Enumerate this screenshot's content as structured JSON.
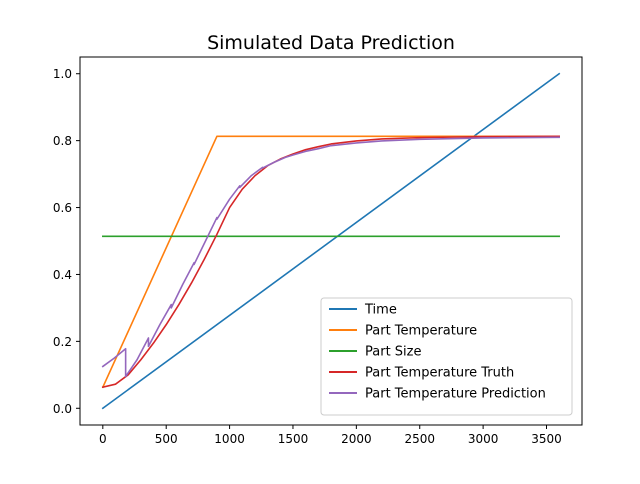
{
  "chart_data": {
    "type": "line",
    "title": "Simulated Data Prediction",
    "xlabel": "",
    "ylabel": "",
    "xlim": [
      -180,
      3780
    ],
    "ylim": [
      -0.05,
      1.05
    ],
    "x_ticks": [
      0,
      500,
      1000,
      1500,
      2000,
      2500,
      3000,
      3500
    ],
    "x_tick_labels": [
      "0",
      "500",
      "1000",
      "1500",
      "2000",
      "2500",
      "3000",
      "3500"
    ],
    "y_ticks": [
      0.0,
      0.2,
      0.4,
      0.6,
      0.8,
      1.0
    ],
    "y_tick_labels": [
      "0.0",
      "0.2",
      "0.4",
      "0.6",
      "0.8",
      "1.0"
    ],
    "grid": false,
    "legend_position": "lower-right",
    "series": [
      {
        "name": "Time",
        "color": "#1f77b4",
        "points": [
          [
            0,
            0.0
          ],
          [
            3600,
            1.0
          ]
        ]
      },
      {
        "name": "Part Temperature",
        "color": "#ff7f0e",
        "points": [
          [
            0,
            0.063
          ],
          [
            900,
            0.813
          ],
          [
            3600,
            0.813
          ]
        ]
      },
      {
        "name": "Part Size",
        "color": "#2ca02c",
        "points": [
          [
            0,
            0.514
          ],
          [
            3600,
            0.514
          ]
        ]
      },
      {
        "name": "Part Temperature Truth",
        "color": "#d62728",
        "points": [
          [
            0,
            0.063
          ],
          [
            100,
            0.072
          ],
          [
            200,
            0.1
          ],
          [
            300,
            0.145
          ],
          [
            400,
            0.195
          ],
          [
            500,
            0.25
          ],
          [
            600,
            0.31
          ],
          [
            700,
            0.375
          ],
          [
            800,
            0.445
          ],
          [
            900,
            0.52
          ],
          [
            1000,
            0.6
          ],
          [
            1100,
            0.655
          ],
          [
            1200,
            0.695
          ],
          [
            1300,
            0.725
          ],
          [
            1400,
            0.745
          ],
          [
            1500,
            0.76
          ],
          [
            1600,
            0.773
          ],
          [
            1700,
            0.782
          ],
          [
            1800,
            0.79
          ],
          [
            2000,
            0.799
          ],
          [
            2200,
            0.805
          ],
          [
            2500,
            0.809
          ],
          [
            3000,
            0.812
          ],
          [
            3600,
            0.813
          ]
        ]
      },
      {
        "name": "Part Temperature Prediction",
        "color": "#9467bd",
        "points": [
          [
            0,
            0.125
          ],
          [
            90,
            0.15
          ],
          [
            180,
            0.178
          ],
          [
            180,
            0.095
          ],
          [
            270,
            0.145
          ],
          [
            360,
            0.21
          ],
          [
            360,
            0.185
          ],
          [
            450,
            0.25
          ],
          [
            540,
            0.31
          ],
          [
            540,
            0.3
          ],
          [
            630,
            0.37
          ],
          [
            720,
            0.435
          ],
          [
            720,
            0.43
          ],
          [
            810,
            0.5
          ],
          [
            900,
            0.57
          ],
          [
            900,
            0.565
          ],
          [
            1000,
            0.625
          ],
          [
            1080,
            0.665
          ],
          [
            1080,
            0.66
          ],
          [
            1170,
            0.695
          ],
          [
            1260,
            0.72
          ],
          [
            1260,
            0.718
          ],
          [
            1350,
            0.735
          ],
          [
            1440,
            0.75
          ],
          [
            1500,
            0.757
          ],
          [
            1600,
            0.768
          ],
          [
            1700,
            0.776
          ],
          [
            1800,
            0.785
          ],
          [
            2000,
            0.793
          ],
          [
            2200,
            0.799
          ],
          [
            2500,
            0.804
          ],
          [
            3000,
            0.808
          ],
          [
            3600,
            0.81
          ]
        ]
      }
    ]
  }
}
